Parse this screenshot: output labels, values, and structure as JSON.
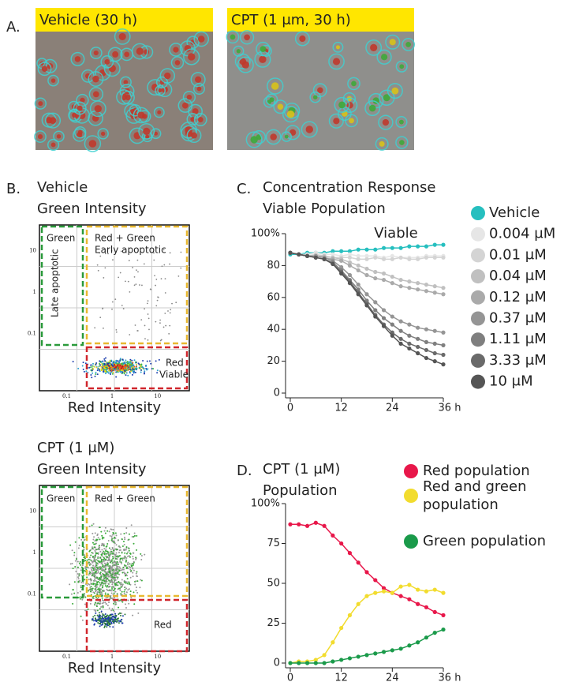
{
  "panel_a": {
    "label": "A.",
    "images": [
      {
        "caption": "Vehicle (30 h)"
      },
      {
        "caption": "CPT (1 μm, 30 h)"
      }
    ]
  },
  "panel_b": {
    "label": "B.",
    "plots": [
      {
        "title": "Vehicle",
        "y_label": "Green Intensity",
        "x_label": "Red Intensity",
        "x_ticks": [
          0.1,
          1,
          10
        ],
        "y_ticks": [
          10,
          1,
          0.1
        ],
        "gates": {
          "green": [
            "Green",
            "Late apoptotic"
          ],
          "yellow": [
            "Red + Green",
            "Early apoptotic"
          ],
          "red": [
            "Red",
            "Viable"
          ]
        }
      },
      {
        "title": "CPT (1 μM)",
        "y_label": "Green Intensity",
        "x_label": "Red Intensity",
        "x_ticks": [
          0.1,
          1,
          10
        ],
        "y_ticks": [
          10,
          1,
          0.1
        ],
        "gates": {
          "green": [
            "Green"
          ],
          "yellow": [
            "Red + Green"
          ],
          "red": [
            "Red"
          ]
        }
      }
    ]
  },
  "chart_data": [
    {
      "type": "line",
      "panel_label": "C.",
      "title": "Concentration Response",
      "subtitle": "Viable Population",
      "annotation": "Viable",
      "x": [
        0,
        2,
        4,
        6,
        8,
        10,
        12,
        14,
        16,
        18,
        20,
        22,
        24,
        26,
        28,
        30,
        32,
        34,
        36
      ],
      "xlim": [
        0,
        36
      ],
      "xticks": [
        0,
        12,
        24,
        {
          "value": 36,
          "label": "36 h"
        }
      ],
      "ylim": [
        0,
        100
      ],
      "yticks": [
        0,
        20,
        40,
        60,
        80,
        {
          "value": 100,
          "label": "100%"
        }
      ],
      "series": [
        {
          "name": "Vehicle",
          "color": "#26bfbf",
          "values": [
            87,
            87,
            88,
            88,
            88,
            89,
            89,
            89,
            90,
            90,
            90,
            91,
            91,
            91,
            92,
            92,
            92,
            93,
            93
          ]
        },
        {
          "name": "0.004 μM",
          "color": "#e6e6e6",
          "values": [
            88,
            87,
            87,
            88,
            87,
            87,
            86,
            87,
            86,
            86,
            86,
            85,
            86,
            85,
            85,
            85,
            86,
            86,
            86
          ]
        },
        {
          "name": "0.01 μM",
          "color": "#d4d4d4",
          "values": [
            88,
            87,
            86,
            87,
            86,
            85,
            85,
            85,
            84,
            84,
            85,
            84,
            84,
            85,
            84,
            84,
            85,
            85,
            85
          ]
        },
        {
          "name": "0.04 μM",
          "color": "#c0c0c0",
          "values": [
            88,
            87,
            86,
            86,
            86,
            85,
            84,
            82,
            80,
            78,
            76,
            75,
            73,
            71,
            70,
            69,
            68,
            67,
            66
          ]
        },
        {
          "name": "0.12 μM",
          "color": "#aaaaaa",
          "values": [
            88,
            87,
            86,
            86,
            85,
            84,
            83,
            80,
            77,
            74,
            72,
            71,
            69,
            67,
            66,
            65,
            64,
            63,
            62
          ]
        },
        {
          "name": "0.37 μM",
          "color": "#959595",
          "values": [
            88,
            87,
            86,
            86,
            85,
            83,
            79,
            74,
            68,
            62,
            57,
            52,
            48,
            45,
            43,
            41,
            40,
            39,
            38
          ]
        },
        {
          "name": "1.11 μM",
          "color": "#7f7f7f",
          "values": [
            88,
            87,
            86,
            85,
            84,
            82,
            77,
            71,
            65,
            58,
            52,
            47,
            43,
            39,
            36,
            34,
            32,
            31,
            30
          ]
        },
        {
          "name": "3.33 μM",
          "color": "#6a6a6a",
          "values": [
            88,
            87,
            86,
            85,
            84,
            81,
            76,
            70,
            63,
            56,
            49,
            43,
            38,
            34,
            31,
            29,
            27,
            25,
            24
          ]
        },
        {
          "name": "10 μM",
          "color": "#555555",
          "values": [
            88,
            87,
            86,
            85,
            84,
            81,
            75,
            69,
            62,
            55,
            48,
            42,
            36,
            31,
            28,
            25,
            22,
            20,
            18
          ]
        }
      ]
    },
    {
      "type": "line",
      "panel_label": "D.",
      "title": "CPT (1 μM)",
      "subtitle": "Population",
      "x": [
        0,
        2,
        4,
        6,
        8,
        10,
        12,
        14,
        16,
        18,
        20,
        22,
        24,
        26,
        28,
        30,
        32,
        34,
        36
      ],
      "xlim": [
        0,
        36
      ],
      "xticks": [
        0,
        12,
        24,
        {
          "value": 36,
          "label": "36 h"
        }
      ],
      "ylim": [
        0,
        100
      ],
      "yticks": [
        0,
        25,
        50,
        75,
        {
          "value": 100,
          "label": "100%"
        }
      ],
      "series": [
        {
          "name": "Red population",
          "color": "#e8174a",
          "values": [
            87,
            87,
            86,
            88,
            86,
            80,
            75,
            69,
            63,
            57,
            52,
            47,
            44,
            42,
            40,
            37,
            35,
            32,
            30
          ]
        },
        {
          "name": "Red and green population",
          "color": "#f2dc2e",
          "values": [
            0,
            1,
            1,
            2,
            5,
            13,
            22,
            30,
            37,
            42,
            44,
            45,
            44,
            48,
            49,
            46,
            45,
            46,
            44
          ]
        },
        {
          "name": "Green population",
          "color": "#1a9a4a",
          "values": [
            0,
            0,
            0,
            0,
            0,
            1,
            2,
            3,
            4,
            5,
            6,
            7,
            8,
            9,
            11,
            13,
            16,
            19,
            21
          ]
        }
      ]
    }
  ]
}
